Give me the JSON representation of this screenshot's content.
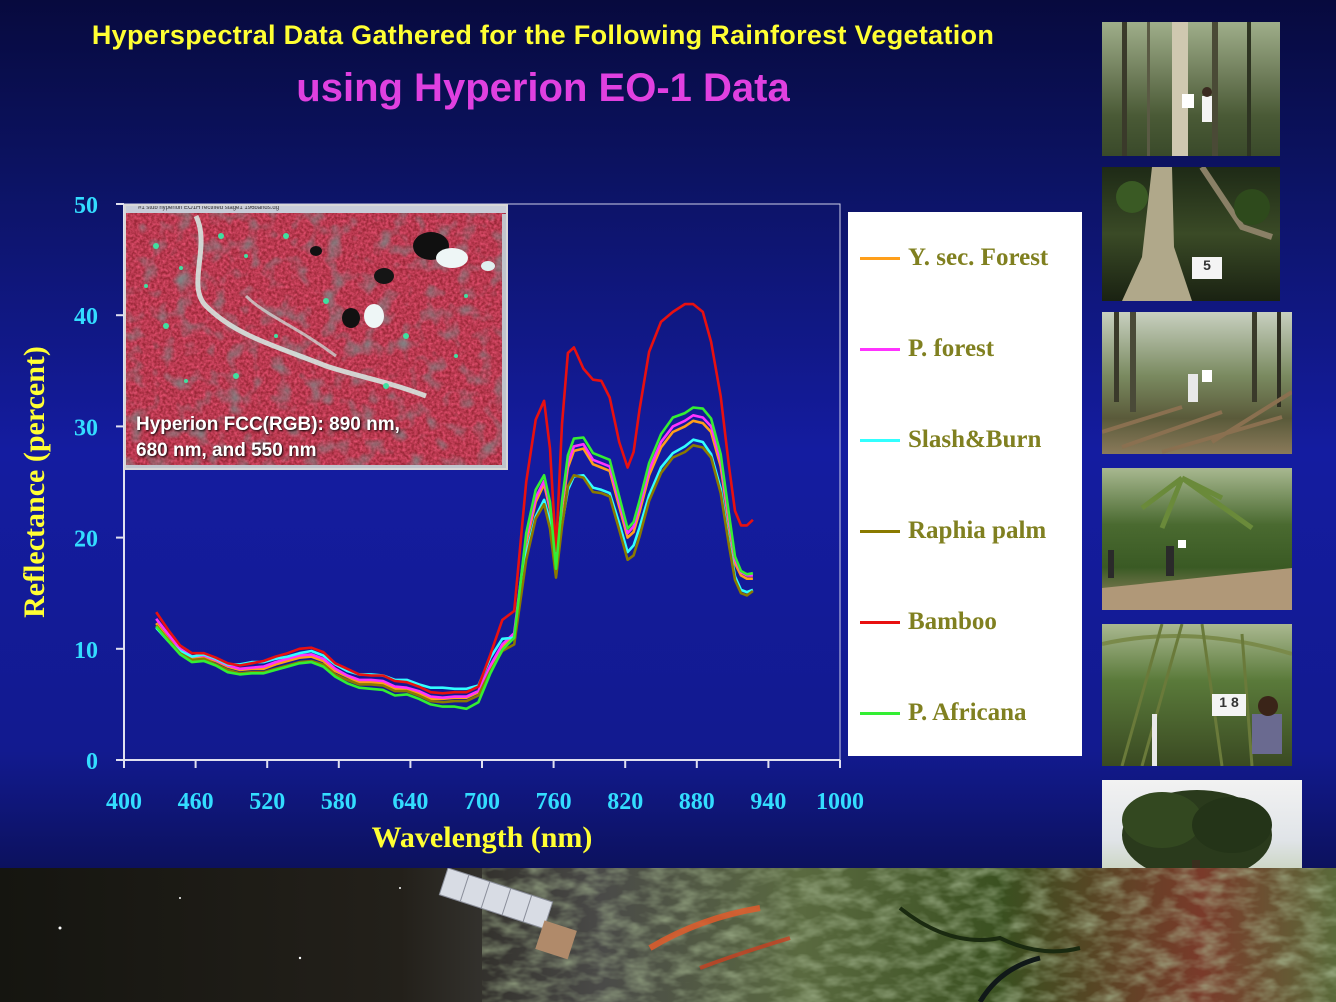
{
  "title_line1": "Hyperspectral  Data Gathered for the Following  Rainforest Vegetation",
  "title_line2": "using Hyperion EO-1 Data",
  "inset_caption": "Hyperion FCC(RGB): 890 nm, 680 nm, and 550 nm",
  "inset_window_title": "#1  stub hyperion EO1H rectified stage1 196bands.dg",
  "photo_signs": {
    "photo2": "5",
    "photo5": "1 8"
  },
  "chart_data": {
    "type": "line",
    "xlabel": "Wavelength (nm)",
    "ylabel": "Reflectance (percent)",
    "xlim": [
      400,
      1000
    ],
    "ylim": [
      0,
      50
    ],
    "xticks": [
      400,
      460,
      520,
      580,
      640,
      700,
      760,
      820,
      880,
      940,
      1000
    ],
    "yticks": [
      0,
      10,
      20,
      30,
      40,
      50
    ],
    "x": [
      427,
      437,
      447,
      457,
      467,
      477,
      487,
      497,
      507,
      517,
      527,
      537,
      547,
      557,
      567,
      577,
      587,
      597,
      607,
      617,
      627,
      637,
      647,
      657,
      667,
      677,
      687,
      697,
      707,
      717,
      727,
      737,
      745,
      752,
      757,
      762,
      767,
      772,
      777,
      785,
      793,
      800,
      807,
      815,
      822,
      827,
      832,
      840,
      850,
      860,
      870,
      877,
      885,
      892,
      900,
      907,
      912,
      917,
      922,
      927
    ],
    "series": [
      {
        "name": "Y. sec. Forest",
        "color": "#ff9f1a",
        "values": [
          12.3,
          10.9,
          9.7,
          9.1,
          9.3,
          8.9,
          8.4,
          8.1,
          8.2,
          8.2,
          8.6,
          8.9,
          9.2,
          9.3,
          8.9,
          8.0,
          7.5,
          7.0,
          7.0,
          6.9,
          6.4,
          6.4,
          6.0,
          5.5,
          5.5,
          5.6,
          5.6,
          6.1,
          8.3,
          10.2,
          11.2,
          19.5,
          23.2,
          24.8,
          22.5,
          17.7,
          22.6,
          26.3,
          27.8,
          28.0,
          26.6,
          26.3,
          26.0,
          22.8,
          20.0,
          20.5,
          22.3,
          25.6,
          28.1,
          29.5,
          30.0,
          30.5,
          30.3,
          29.5,
          26.4,
          21.2,
          17.7,
          16.6,
          16.3,
          16.3
        ]
      },
      {
        "name": "P. forest",
        "color": "#ff33ff",
        "values": [
          12.7,
          11.3,
          10.0,
          9.3,
          9.4,
          9.0,
          8.5,
          8.2,
          8.3,
          8.4,
          8.8,
          9.1,
          9.4,
          9.5,
          9.1,
          8.2,
          7.6,
          7.2,
          7.2,
          7.1,
          6.6,
          6.5,
          6.2,
          5.7,
          5.6,
          5.7,
          5.7,
          6.2,
          8.5,
          10.4,
          11.4,
          20.0,
          23.6,
          25.1,
          22.8,
          17.9,
          23.0,
          26.7,
          28.2,
          28.4,
          27.0,
          26.7,
          26.4,
          23.2,
          20.4,
          21.0,
          22.8,
          26.1,
          28.6,
          30.0,
          30.5,
          31.0,
          30.8,
          30.0,
          26.9,
          21.6,
          18.0,
          16.9,
          16.6,
          16.6
        ]
      },
      {
        "name": "Slash&Burn",
        "color": "#33ffff",
        "values": [
          11.9,
          10.7,
          9.8,
          9.3,
          9.5,
          9.1,
          8.6,
          8.6,
          8.8,
          8.8,
          9.1,
          9.3,
          9.6,
          9.8,
          9.4,
          8.6,
          8.0,
          7.7,
          7.7,
          7.6,
          7.2,
          7.2,
          6.8,
          6.5,
          6.5,
          6.4,
          6.4,
          6.7,
          9.2,
          10.9,
          11.0,
          18.5,
          21.9,
          23.4,
          21.4,
          17.2,
          21.2,
          24.3,
          25.5,
          25.6,
          24.5,
          24.3,
          24.0,
          21.3,
          18.7,
          19.3,
          20.9,
          23.8,
          26.3,
          27.6,
          28.2,
          28.8,
          28.6,
          27.5,
          24.4,
          19.6,
          16.5,
          15.3,
          15.1,
          15.3
        ]
      },
      {
        "name": "Raphia palm",
        "color": "#8a7a00",
        "values": [
          12.1,
          10.8,
          9.6,
          9.0,
          9.1,
          8.6,
          8.1,
          7.8,
          7.9,
          7.9,
          8.2,
          8.5,
          8.8,
          8.9,
          8.6,
          7.7,
          7.2,
          6.8,
          6.8,
          6.7,
          6.2,
          6.2,
          5.8,
          5.3,
          5.2,
          5.3,
          5.3,
          5.8,
          8.0,
          9.8,
          10.4,
          18.0,
          21.7,
          23.0,
          20.8,
          16.4,
          21.0,
          24.6,
          25.6,
          25.4,
          24.1,
          24.0,
          23.7,
          20.7,
          18.0,
          18.4,
          20.1,
          23.3,
          25.8,
          27.2,
          27.7,
          28.3,
          28.1,
          27.2,
          24.0,
          19.3,
          16.2,
          15.0,
          14.8,
          15.2
        ]
      },
      {
        "name": "Bamboo",
        "color": "#e81010",
        "values": [
          13.3,
          11.7,
          10.3,
          9.6,
          9.6,
          9.2,
          8.7,
          8.5,
          8.7,
          8.9,
          9.3,
          9.6,
          10.0,
          10.1,
          9.7,
          8.7,
          8.2,
          7.7,
          7.6,
          7.6,
          7.1,
          7.0,
          6.6,
          6.1,
          6.0,
          6.1,
          6.1,
          6.6,
          9.5,
          12.6,
          13.4,
          25.0,
          30.6,
          32.3,
          28.0,
          18.8,
          30.2,
          36.6,
          37.1,
          35.2,
          34.2,
          34.1,
          32.6,
          28.6,
          26.3,
          27.7,
          31.5,
          36.7,
          39.4,
          40.3,
          41.0,
          41.0,
          40.3,
          37.6,
          32.7,
          26.4,
          22.4,
          21.1,
          21.1,
          21.6
        ]
      },
      {
        "name": "P. Africana",
        "color": "#33ee33",
        "values": [
          12.0,
          10.7,
          9.5,
          8.8,
          8.9,
          8.5,
          7.9,
          7.7,
          7.8,
          7.8,
          8.1,
          8.4,
          8.7,
          8.8,
          8.4,
          7.5,
          6.9,
          6.5,
          6.4,
          6.3,
          5.8,
          5.9,
          5.5,
          5.0,
          4.8,
          4.8,
          4.6,
          5.2,
          7.8,
          9.9,
          11.0,
          20.4,
          24.3,
          25.6,
          23.2,
          17.2,
          23.3,
          27.4,
          28.9,
          29.0,
          27.6,
          27.3,
          27.0,
          23.7,
          20.8,
          21.4,
          23.3,
          26.7,
          29.3,
          30.8,
          31.2,
          31.7,
          31.6,
          30.7,
          27.5,
          22.1,
          18.3,
          17.0,
          16.7,
          16.8
        ]
      }
    ],
    "legend_position": "right",
    "grid": false
  }
}
